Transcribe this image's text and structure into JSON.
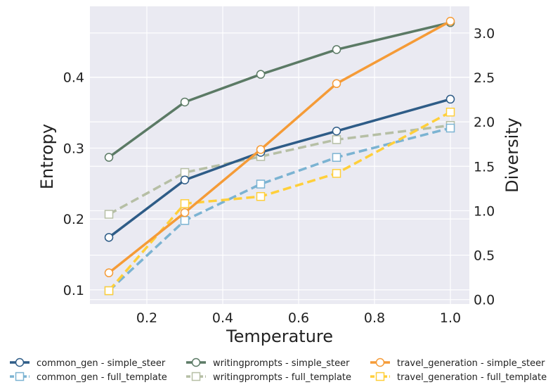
{
  "chart_data": {
    "type": "line",
    "xlabel": "Temperature",
    "ylabel_left": "Entropy",
    "ylabel_right": "Diversity",
    "x": [
      0.1,
      0.3,
      0.5,
      0.7,
      1.0
    ],
    "xlim": [
      0.05,
      1.05
    ],
    "ylim_left": [
      0.08,
      0.5
    ],
    "ylim_right": [
      -0.05,
      3.3
    ],
    "x_ticks": [
      "0.2",
      "0.4",
      "0.6",
      "0.8",
      "1.0"
    ],
    "x_tick_values": [
      0.2,
      0.4,
      0.6,
      0.8,
      1.0
    ],
    "y_left_ticks": [
      "0.1",
      "0.2",
      "0.3",
      "0.4"
    ],
    "y_left_tick_values": [
      0.1,
      0.2,
      0.3,
      0.4
    ],
    "y_right_ticks": [
      "0.0",
      "0.5",
      "1.0",
      "1.5",
      "2.0",
      "2.5",
      "3.0"
    ],
    "y_right_tick_values": [
      0.0,
      0.5,
      1.0,
      1.5,
      2.0,
      2.5,
      3.0
    ],
    "grid": true,
    "legend_position": "bottom",
    "series": [
      {
        "name": "common_gen - simple_steer",
        "axis": "left",
        "values": [
          0.174,
          0.255,
          0.294,
          0.324,
          0.369
        ],
        "color": "#2e5c87",
        "dash": false,
        "marker": "circle"
      },
      {
        "name": "writingprompts - simple_steer",
        "axis": "left",
        "values": [
          0.287,
          0.365,
          0.404,
          0.439,
          0.477
        ],
        "color": "#5b7a65",
        "dash": false,
        "marker": "circle"
      },
      {
        "name": "travel_generation - simple_steer",
        "axis": "left",
        "values": [
          0.124,
          0.209,
          0.298,
          0.391,
          0.479
        ],
        "color": "#f59b37",
        "dash": false,
        "marker": "circle"
      },
      {
        "name": "common_gen - full_template",
        "axis": "right",
        "values": [
          0.1,
          0.89,
          1.3,
          1.6,
          1.93
        ],
        "color": "#7bb3d2",
        "dash": true,
        "marker": "square"
      },
      {
        "name": "writingprompts - full_template",
        "axis": "right",
        "values": [
          0.96,
          1.43,
          1.61,
          1.8,
          1.96
        ],
        "color": "#b6bfa5",
        "dash": true,
        "marker": "square"
      },
      {
        "name": "travel_generation - full_template",
        "axis": "right",
        "values": [
          0.1,
          1.08,
          1.16,
          1.42,
          2.11
        ],
        "color": "#ffcf3a",
        "dash": true,
        "marker": "square"
      }
    ],
    "legend_order": [
      0,
      3,
      1,
      4,
      2,
      5
    ]
  },
  "colors": {
    "plot_bg": "#eaeaf2",
    "grid": "#ffffff"
  }
}
